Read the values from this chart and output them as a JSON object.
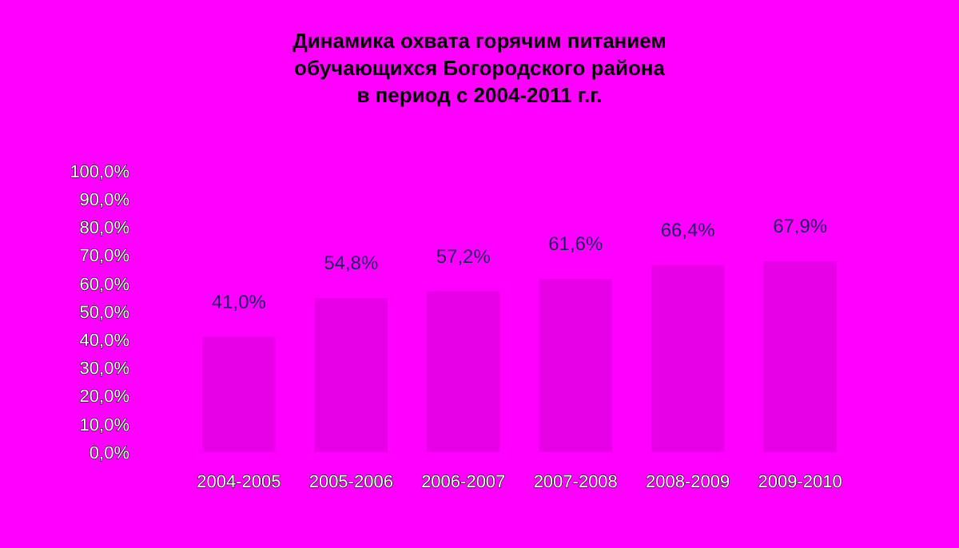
{
  "chart_data": {
    "type": "bar",
    "title": "Динамика охвата горячим питанием\nобучающихся Богородского района\nв период с 2004-2011 г.г.",
    "categories": [
      "2004-2005",
      "2005-2006",
      "2006-2007",
      "2007-2008",
      "2008-2009",
      "2009-2010"
    ],
    "values": [
      41.0,
      54.8,
      57.2,
      61.6,
      66.4,
      67.9
    ],
    "color": "#e600e6",
    "value_labels": [
      "41,0%",
      "54,8%",
      "57,2%",
      "61,6%",
      "66,4%",
      "67,9%"
    ],
    "ylim": [
      0,
      100
    ],
    "yticks": [
      {
        "value": 0,
        "label": "0,0%"
      },
      {
        "value": 10,
        "label": "10,0%"
      },
      {
        "value": 20,
        "label": "20,0%"
      },
      {
        "value": 30,
        "label": "30,0%"
      },
      {
        "value": 40,
        "label": "40,0%"
      },
      {
        "value": 50,
        "label": "50,0%"
      },
      {
        "value": 60,
        "label": "60,0%"
      },
      {
        "value": 70,
        "label": "70,0%"
      },
      {
        "value": 80,
        "label": "80,0%"
      },
      {
        "value": 90,
        "label": "90,0%"
      },
      {
        "value": 100,
        "label": "100,0%"
      }
    ]
  }
}
